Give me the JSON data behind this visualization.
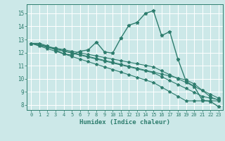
{
  "xlabel": "Humidex (Indice chaleur)",
  "bg_color": "#cce8e8",
  "grid_color": "#ffffff",
  "line_color": "#2e7d6e",
  "xlim": [
    -0.5,
    23.5
  ],
  "ylim": [
    7.6,
    15.7
  ],
  "yticks": [
    8,
    9,
    10,
    11,
    12,
    13,
    14,
    15
  ],
  "xticks": [
    0,
    1,
    2,
    3,
    4,
    5,
    6,
    7,
    8,
    9,
    10,
    11,
    12,
    13,
    14,
    15,
    16,
    17,
    18,
    19,
    20,
    21,
    22,
    23
  ],
  "series": [
    [
      12.7,
      12.7,
      12.5,
      12.2,
      11.9,
      11.8,
      12.1,
      12.2,
      12.8,
      12.05,
      11.95,
      13.1,
      14.1,
      14.3,
      15.0,
      15.2,
      13.3,
      13.6,
      11.5,
      9.8,
      9.4,
      8.35,
      8.25,
      7.85
    ],
    [
      12.7,
      12.6,
      12.45,
      12.3,
      12.15,
      12.0,
      11.85,
      11.7,
      11.55,
      11.4,
      11.25,
      11.1,
      10.95,
      10.8,
      10.65,
      10.5,
      10.35,
      10.2,
      10.05,
      9.9,
      9.6,
      9.1,
      8.6,
      8.35
    ],
    [
      12.7,
      12.58,
      12.46,
      12.34,
      12.22,
      12.1,
      11.98,
      11.86,
      11.74,
      11.62,
      11.5,
      11.38,
      11.26,
      11.14,
      11.02,
      10.9,
      10.6,
      10.3,
      10.0,
      9.7,
      9.4,
      9.1,
      8.8,
      8.5
    ],
    [
      12.7,
      12.55,
      12.4,
      12.25,
      12.1,
      11.95,
      11.8,
      11.65,
      11.5,
      11.35,
      11.2,
      11.05,
      10.9,
      10.75,
      10.6,
      10.45,
      10.15,
      9.85,
      9.55,
      9.25,
      8.95,
      8.65,
      8.5,
      8.4
    ],
    [
      12.7,
      12.5,
      12.3,
      12.1,
      11.9,
      11.7,
      11.5,
      11.3,
      11.1,
      10.9,
      10.7,
      10.5,
      10.3,
      10.1,
      9.9,
      9.7,
      9.35,
      9.0,
      8.65,
      8.3,
      8.3,
      8.3,
      8.3,
      8.3
    ]
  ]
}
